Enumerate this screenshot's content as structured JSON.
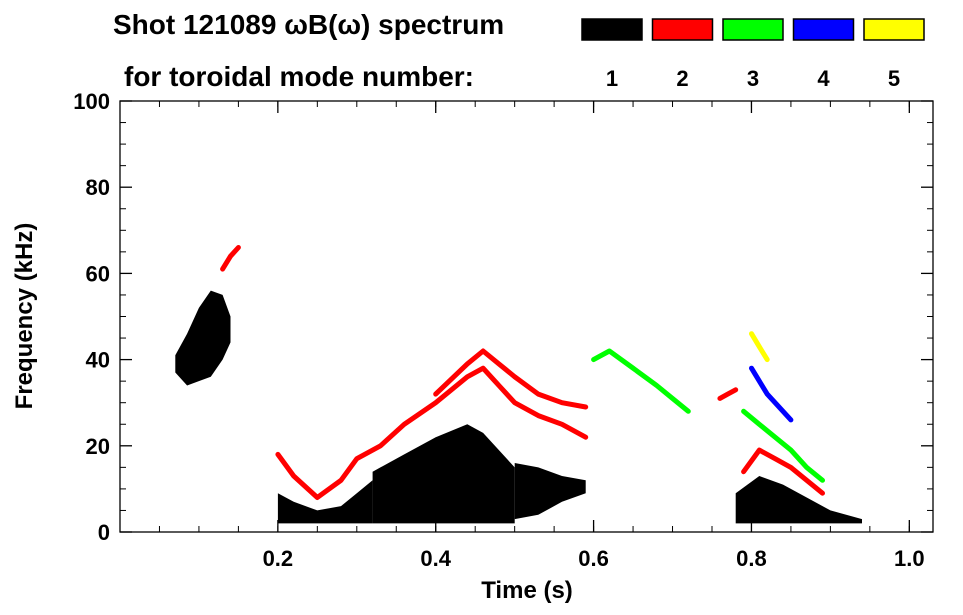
{
  "header": {
    "title": "Shot 121089 ωB(ω) spectrum",
    "mode_label": "for toroidal mode number:"
  },
  "modes": [
    {
      "number": "1",
      "color": "#000000"
    },
    {
      "number": "2",
      "color": "#ff0000"
    },
    {
      "number": "3",
      "color": "#00ff00"
    },
    {
      "number": "4",
      "color": "#0000ff"
    },
    {
      "number": "5",
      "color": "#ffff00"
    }
  ],
  "chart_data": {
    "type": "heatmap",
    "title": "Shot 121089 ωB(ω) spectrum",
    "xlabel": "Time (s)",
    "ylabel": "Frequency (kHz)",
    "xlim": [
      0.0,
      1.03
    ],
    "ylim": [
      0,
      100
    ],
    "xticks": [
      0.2,
      0.4,
      0.6,
      0.8,
      1.0
    ],
    "xtick_labels": [
      "0.2",
      "0.4",
      "0.6",
      "0.8",
      "1.0"
    ],
    "yticks": [
      0,
      20,
      40,
      60,
      80,
      100
    ],
    "ytick_labels": [
      "0",
      "20",
      "40",
      "60",
      "80",
      "100"
    ],
    "legend": "top-right, colored swatches labeled 1 through 5",
    "grid": false,
    "series": [
      {
        "name": "1",
        "color": "#000000",
        "regions": [
          {
            "x": [
              0.07,
              0.085,
              0.1,
              0.115,
              0.13,
              0.14
            ],
            "low": [
              37,
              34,
              35,
              36,
              40,
              44
            ],
            "high": [
              41,
              46,
              52,
              56,
              55,
              50
            ]
          },
          {
            "x": [
              0.2,
              0.22,
              0.25,
              0.28,
              0.3,
              0.32
            ],
            "low": [
              2,
              2,
              2,
              2,
              2,
              2
            ],
            "high": [
              9,
              7,
              5,
              6,
              9,
              12
            ]
          },
          {
            "x": [
              0.32,
              0.36,
              0.4,
              0.44,
              0.46,
              0.5
            ],
            "low": [
              2,
              2,
              2,
              2,
              2,
              2
            ],
            "high": [
              14,
              18,
              22,
              25,
              23,
              15
            ]
          },
          {
            "x": [
              0.5,
              0.53,
              0.56,
              0.59
            ],
            "low": [
              3,
              4,
              7,
              9
            ],
            "high": [
              16,
              15,
              13,
              12
            ]
          },
          {
            "x": [
              0.78,
              0.81,
              0.84,
              0.87,
              0.9,
              0.94
            ],
            "low": [
              2,
              2,
              2,
              2,
              2,
              2
            ],
            "high": [
              9,
              13,
              11,
              8,
              5,
              3
            ]
          }
        ]
      },
      {
        "name": "2",
        "color": "#ff0000",
        "tracks": [
          {
            "x": [
              0.2,
              0.22,
              0.25,
              0.28,
              0.3,
              0.33,
              0.36,
              0.4,
              0.44,
              0.46,
              0.48,
              0.5,
              0.53,
              0.56,
              0.59
            ],
            "y": [
              18,
              13,
              8,
              12,
              17,
              20,
              25,
              30,
              36,
              38,
              34,
              30,
              27,
              25,
              22
            ]
          },
          {
            "x": [
              0.4,
              0.44,
              0.46,
              0.48,
              0.5,
              0.53,
              0.56,
              0.59
            ],
            "y": [
              32,
              39,
              42,
              39,
              36,
              32,
              30,
              29
            ]
          },
          {
            "x": [
              0.13,
              0.14,
              0.15
            ],
            "y": [
              61,
              64,
              66
            ]
          },
          {
            "x": [
              0.76,
              0.77,
              0.78
            ],
            "y": [
              31,
              32,
              33
            ]
          },
          {
            "x": [
              0.79,
              0.81,
              0.83,
              0.85,
              0.87,
              0.89
            ],
            "y": [
              14,
              19,
              17,
              15,
              12,
              9
            ]
          }
        ]
      },
      {
        "name": "3",
        "color": "#00ff00",
        "tracks": [
          {
            "x": [
              0.6,
              0.62,
              0.65,
              0.68,
              0.7,
              0.72
            ],
            "y": [
              40,
              42,
              38,
              34,
              31,
              28
            ]
          },
          {
            "x": [
              0.79,
              0.81,
              0.83,
              0.85,
              0.87,
              0.89
            ],
            "y": [
              28,
              25,
              22,
              19,
              15,
              12
            ]
          }
        ]
      },
      {
        "name": "4",
        "color": "#0000ff",
        "tracks": [
          {
            "x": [
              0.8,
              0.81,
              0.82,
              0.83,
              0.84,
              0.85
            ],
            "y": [
              38,
              35,
              32,
              30,
              28,
              26
            ]
          }
        ]
      },
      {
        "name": "5",
        "color": "#ffff00",
        "tracks": [
          {
            "x": [
              0.8,
              0.81,
              0.82
            ],
            "y": [
              46,
              43,
              40
            ]
          }
        ]
      }
    ]
  }
}
